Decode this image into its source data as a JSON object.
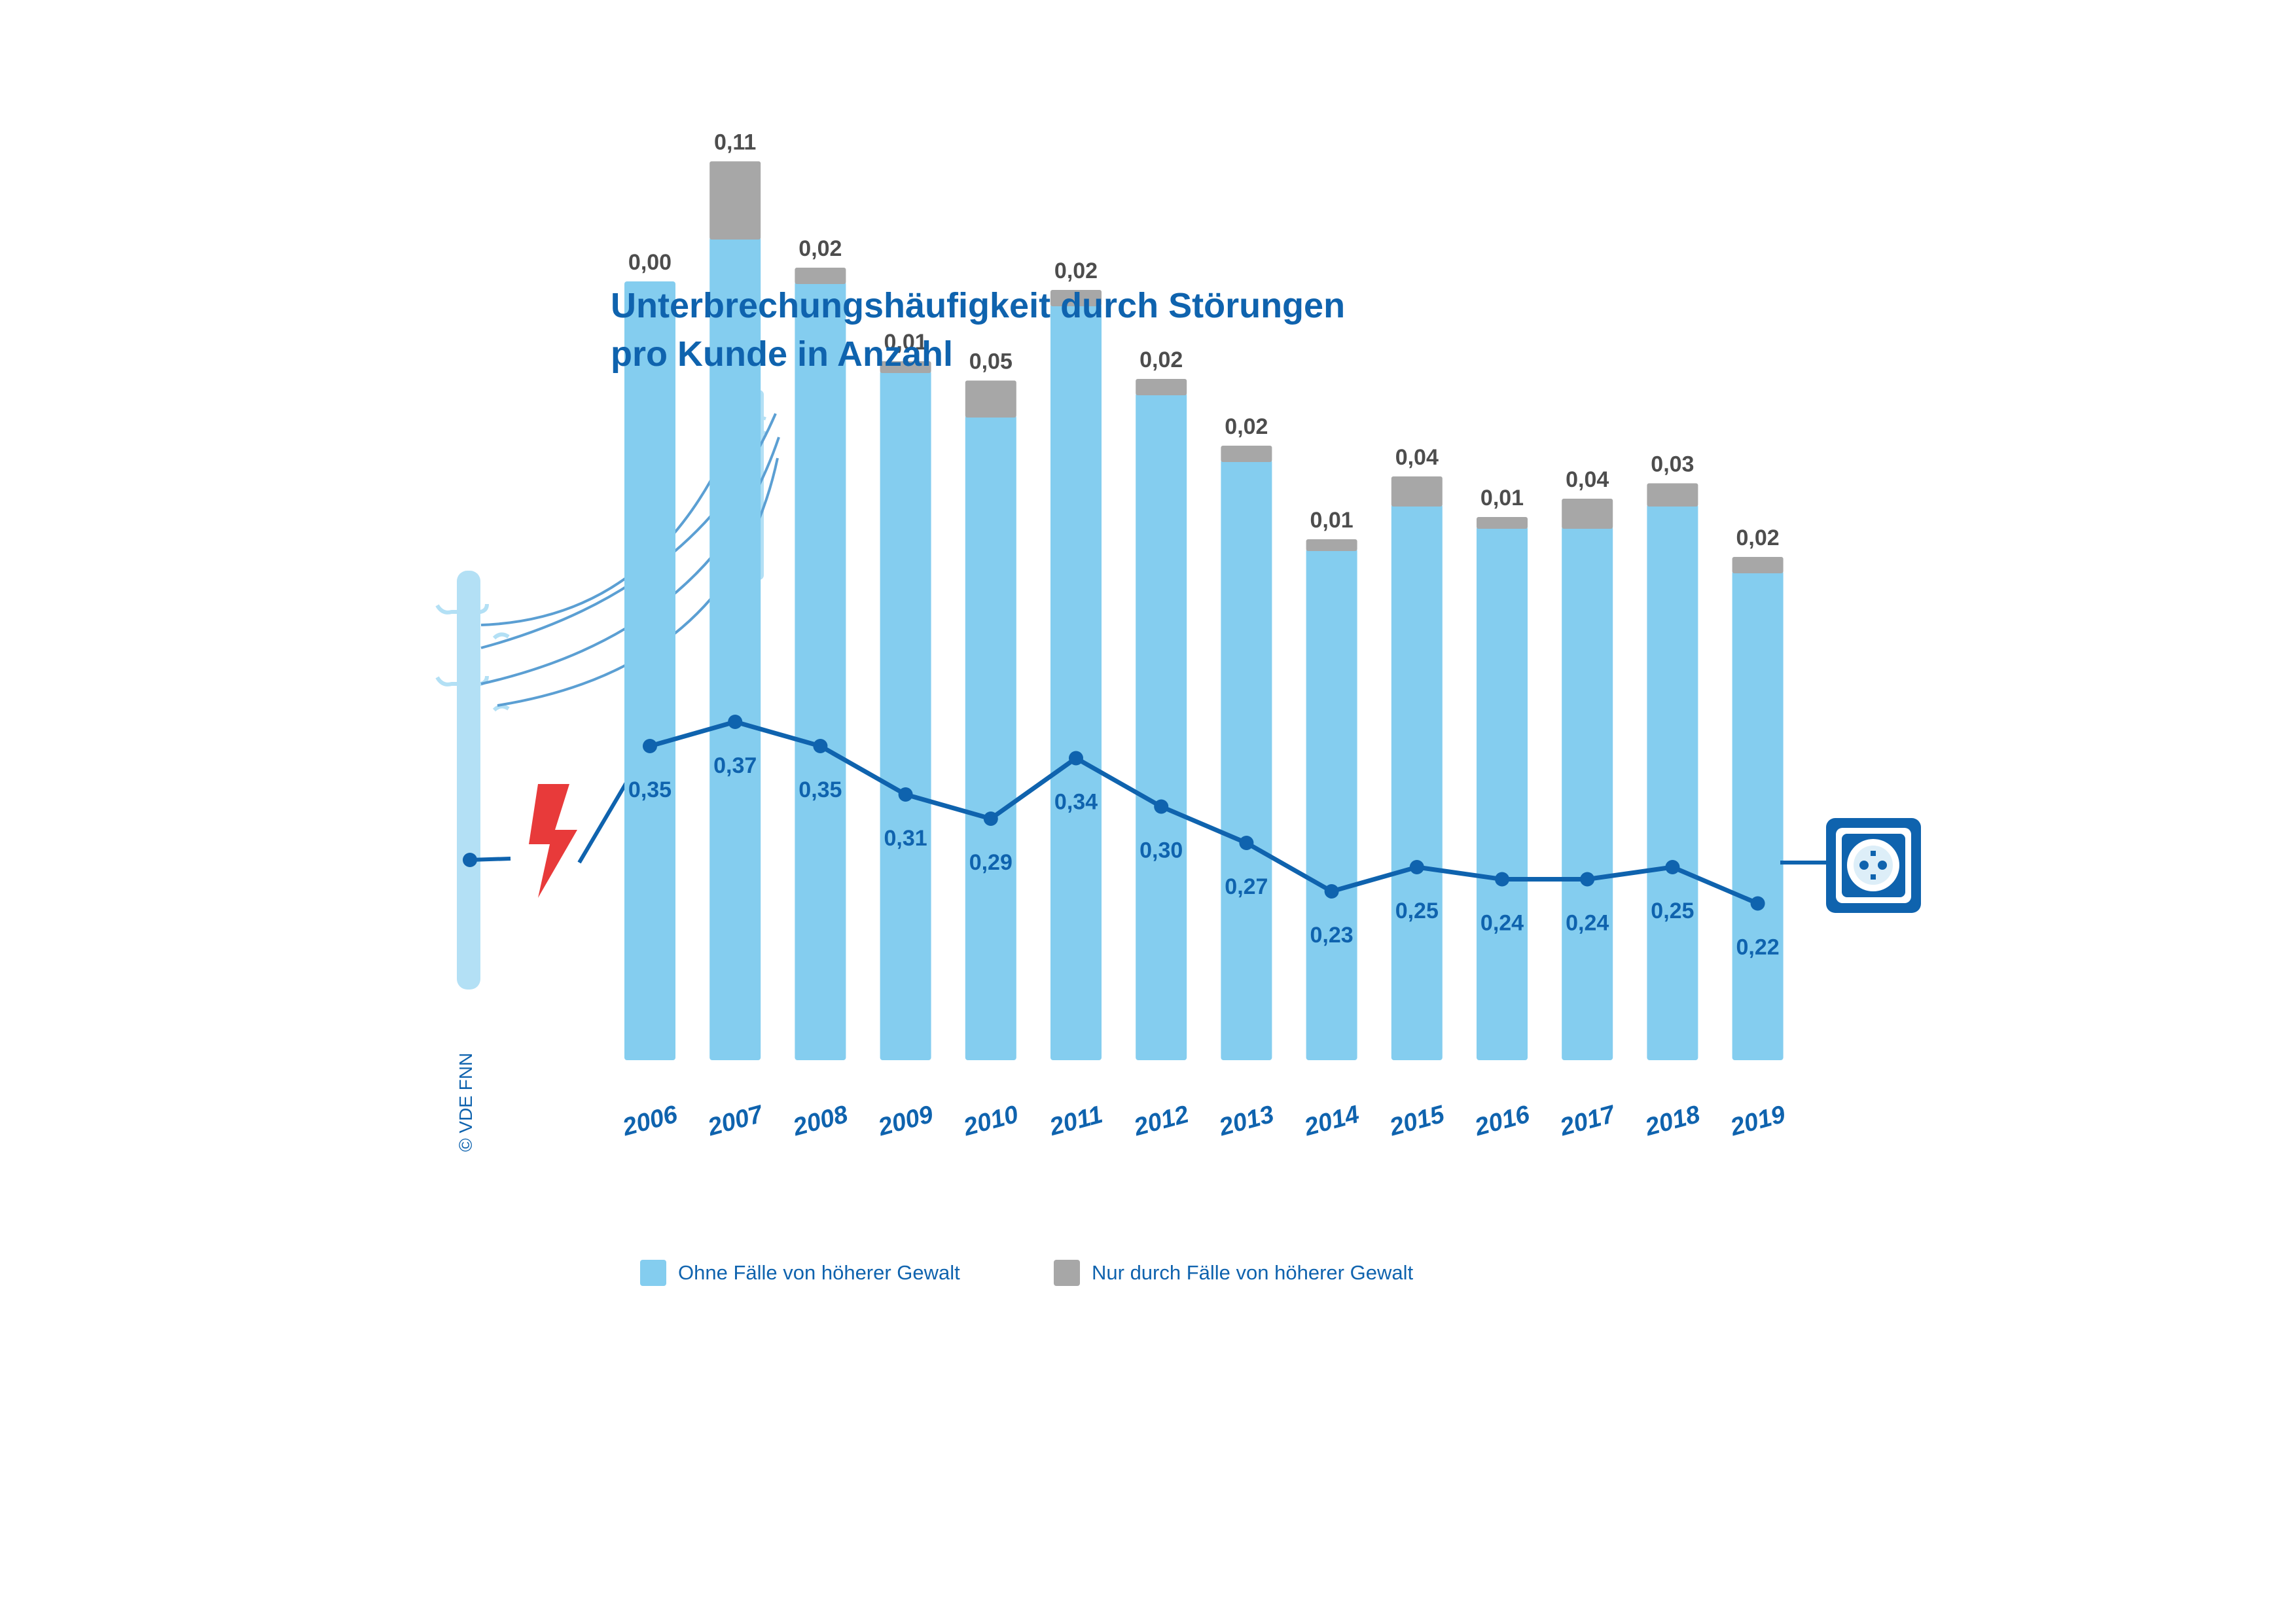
{
  "title_lines": [
    "Unterbrechungshäufigkeit durch Störungen",
    "pro Kunde in Anzahl"
  ],
  "copyright": "© VDE FNN",
  "colors": {
    "base_bar": "#84cdef",
    "extra_bar": "#a7a7a7",
    "line": "#0f63ae",
    "extra_label": "#4d4d4d",
    "pole": "#b3e0f5",
    "lightning": "#e83a3a"
  },
  "icons": [
    "power-pole-icon",
    "lightning-icon",
    "power-socket-icon"
  ],
  "chart_data": {
    "type": "bar",
    "stacked": true,
    "categories": [
      "2006",
      "2007",
      "2008",
      "2009",
      "2010",
      "2011",
      "2012",
      "2013",
      "2014",
      "2015",
      "2016",
      "2017",
      "2018",
      "2019"
    ],
    "series": [
      {
        "name": "Ohne Fälle von höherer Gewalt",
        "values": [
          0.35,
          0.37,
          0.35,
          0.31,
          0.29,
          0.34,
          0.3,
          0.27,
          0.23,
          0.25,
          0.24,
          0.24,
          0.25,
          0.22
        ],
        "labels": [
          "0,35",
          "0,37",
          "0,35",
          "0,31",
          "0,29",
          "0,34",
          "0,30",
          "0,27",
          "0,23",
          "0,25",
          "0,24",
          "0,24",
          "0,25",
          "0,22"
        ]
      },
      {
        "name": "Nur durch Fälle von höherer Gewalt",
        "values": [
          0.0,
          0.11,
          0.02,
          0.01,
          0.05,
          0.02,
          0.02,
          0.02,
          0.01,
          0.04,
          0.01,
          0.04,
          0.03,
          0.02
        ],
        "labels": [
          "0,00",
          "0,11",
          "0,02",
          "0,01",
          "0,05",
          "0,02",
          "0,02",
          "0,02",
          "0,01",
          "0,04",
          "0,01",
          "0,04",
          "0,03",
          "0,02"
        ]
      }
    ],
    "legend": [
      "Ohne Fälle von höherer Gewalt",
      "Nur durch Fälle von höherer Gewalt"
    ],
    "legend_position": "bottom",
    "grid": false
  }
}
